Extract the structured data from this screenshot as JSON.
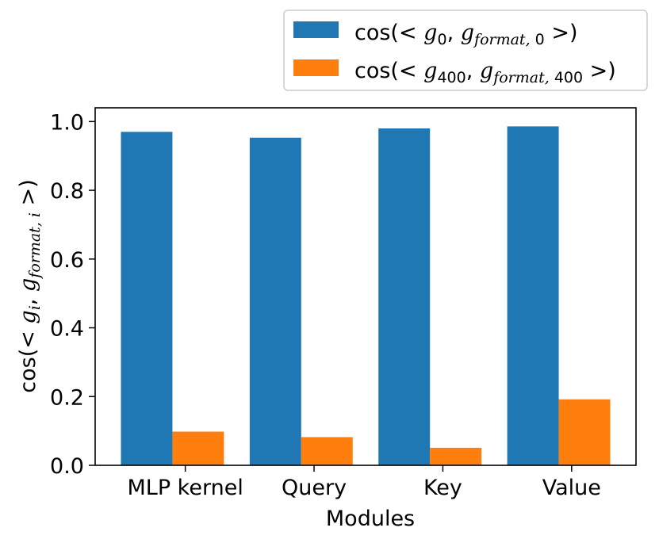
{
  "chart_data": {
    "type": "bar",
    "xlabel": "Modules",
    "ylabel": "cos(< g_i, g_format,i >)",
    "ylim": [
      0,
      1.04
    ],
    "yticks": [
      "0.0",
      "0.2",
      "0.4",
      "0.6",
      "0.8",
      "1.0"
    ],
    "categories": [
      "MLP kernel",
      "Query",
      "Key",
      "Value"
    ],
    "series": [
      {
        "name": "cos(< g_0, g_format,0 >)",
        "color": "#1f77b4",
        "values": [
          0.97,
          0.953,
          0.98,
          0.986
        ]
      },
      {
        "name": "cos(< g_400, g_format,400 >)",
        "color": "#ff7f0e",
        "values": [
          0.098,
          0.082,
          0.051,
          0.192
        ]
      }
    ],
    "legend_placement": "top-right, outside plot",
    "grid": false
  }
}
